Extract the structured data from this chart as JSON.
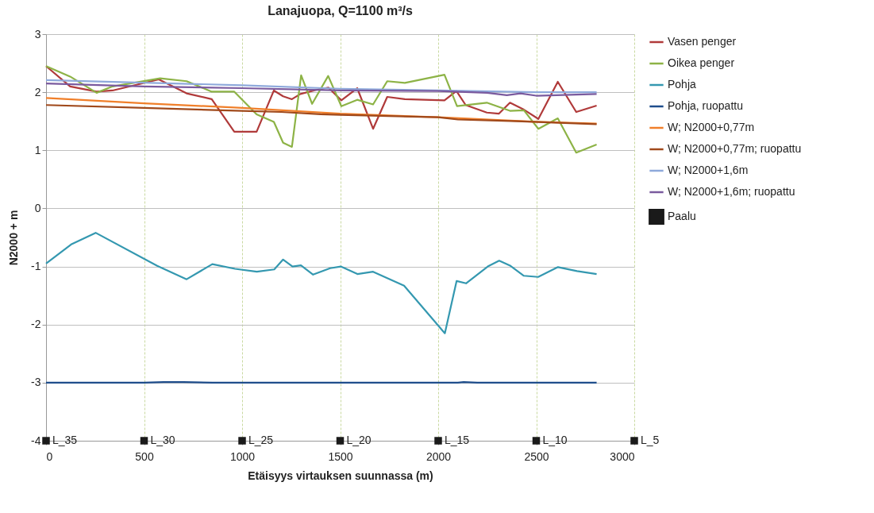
{
  "chart_data": {
    "type": "line",
    "title": "Lanajuopa, Q=1100 m³/s",
    "xlabel": "Etäisyys virtauksen suunnassa (m)",
    "ylabel": "N2000 + m",
    "xlim": [
      0,
      3000
    ],
    "xticks": [
      0,
      500,
      1000,
      1500,
      2000,
      2500,
      3000
    ],
    "ylim": [
      -4,
      3
    ],
    "yticks": [
      -4,
      -3,
      -2,
      -1,
      0,
      1,
      2,
      3
    ],
    "grid": true,
    "legend": "right",
    "line_style": "solid",
    "annotations": [
      {
        "text": "L_35",
        "x": 0,
        "y": -4
      },
      {
        "text": "L_30",
        "x": 500,
        "y": -4
      },
      {
        "text": "L_25",
        "x": 1000,
        "y": -4
      },
      {
        "text": "L_20",
        "x": 1500,
        "y": -4
      },
      {
        "text": "L_15",
        "x": 2000,
        "y": -4
      },
      {
        "text": "L_10",
        "x": 2500,
        "y": -4
      },
      {
        "text": "L_5",
        "x": 3000,
        "y": -4
      }
    ],
    "series": [
      {
        "name": "Vasen penger",
        "color": "#b03a3a",
        "x": [
          0,
          123,
          258,
          339,
          575,
          717,
          845,
          960,
          1074,
          1162,
          1209,
          1254,
          1297,
          1378,
          1440,
          1506,
          1587,
          1668,
          1740,
          1830,
          2032,
          2093,
          2140,
          2248,
          2309,
          2366,
          2437,
          2511,
          2610,
          2704,
          2808
        ],
        "values": [
          2.45,
          2.1,
          2.01,
          2.03,
          2.22,
          1.98,
          1.88,
          1.32,
          1.32,
          2.03,
          1.93,
          1.88,
          1.97,
          2.04,
          2.08,
          1.86,
          2.07,
          1.37,
          1.92,
          1.88,
          1.86,
          2.02,
          1.78,
          1.65,
          1.63,
          1.82,
          1.7,
          1.54,
          2.18,
          1.66,
          1.77
        ]
      },
      {
        "name": "Oikea penger",
        "color": "#8db346",
        "x": [
          0,
          123,
          258,
          339,
          582,
          717,
          845,
          960,
          1074,
          1162,
          1209,
          1254,
          1301,
          1357,
          1439,
          1506,
          1587,
          1668,
          1740,
          1830,
          2032,
          2096,
          2248,
          2366,
          2437,
          2511,
          2610,
          2704,
          2808
        ],
        "values": [
          2.45,
          2.27,
          1.99,
          2.1,
          2.24,
          2.19,
          2.01,
          2.01,
          1.62,
          1.49,
          1.13,
          1.06,
          2.29,
          1.8,
          2.28,
          1.76,
          1.87,
          1.79,
          2.19,
          2.16,
          2.3,
          1.76,
          1.82,
          1.68,
          1.69,
          1.37,
          1.55,
          0.96,
          1.1
        ]
      },
      {
        "name": "Pohja",
        "color": "#3498b0",
        "x": [
          0,
          128,
          253,
          567,
          717,
          848,
          964,
          1075,
          1164,
          1209,
          1257,
          1300,
          1362,
          1449,
          1503,
          1588,
          1668,
          1826,
          2034,
          2094,
          2142,
          2253,
          2311,
          2369,
          2437,
          2510,
          2611,
          2708,
          2808
        ],
        "values": [
          -0.95,
          -0.62,
          -0.42,
          -0.99,
          -1.22,
          -0.96,
          -1.04,
          -1.09,
          -1.05,
          -0.88,
          -1.0,
          -0.98,
          -1.14,
          -1.03,
          -1.0,
          -1.13,
          -1.09,
          -1.33,
          -2.15,
          -1.25,
          -1.29,
          -1.0,
          -0.9,
          -0.99,
          -1.16,
          -1.18,
          -1.01,
          -1.08,
          -1.13
        ]
      },
      {
        "name": "Pohja, ruopattu",
        "color": "#1f4e8c",
        "x": [
          0,
          500,
          600,
          700,
          850,
          1500,
          2100,
          2130,
          2200,
          2500,
          2808
        ],
        "values": [
          -3,
          -3,
          -2.99,
          -2.99,
          -3,
          -3,
          -3,
          -2.99,
          -3,
          -3,
          -3
        ]
      },
      {
        "name": "W; N2000+0,77m",
        "color": "#f07f2a",
        "x": [
          0,
          500,
          1000,
          1500,
          2000,
          2500,
          2808
        ],
        "values": [
          1.9,
          1.81,
          1.73,
          1.63,
          1.57,
          1.49,
          1.46
        ]
      },
      {
        "name": "W; N2000+0,77m; ruopattu",
        "color": "#a0491b",
        "x": [
          0,
          500,
          1000,
          1200,
          1400,
          1500,
          2000,
          2100,
          2400,
          2808
        ],
        "values": [
          1.78,
          1.73,
          1.68,
          1.66,
          1.62,
          1.61,
          1.57,
          1.53,
          1.5,
          1.45
        ]
      },
      {
        "name": "W; N2000+1,6m",
        "color": "#8ea9db",
        "x": [
          0,
          1000,
          1500,
          2000,
          2500,
          2808
        ],
        "values": [
          2.21,
          2.12,
          2.06,
          2.03,
          2.0,
          2.0
        ]
      },
      {
        "name": "W; N2000+1,6m; ruopattu",
        "color": "#7a5a9e",
        "x": [
          0,
          500,
          1000,
          1500,
          2000,
          2250,
          2350,
          2420,
          2500,
          2808
        ],
        "values": [
          2.15,
          2.1,
          2.07,
          2.03,
          2.02,
          1.99,
          1.95,
          1.98,
          1.94,
          1.97
        ]
      },
      {
        "name": "Paalu",
        "type": "scatter",
        "marker": "square",
        "color": "#1a1a1a",
        "x": [
          0,
          500,
          1000,
          1500,
          2000,
          2500,
          3000
        ],
        "values": [
          -4,
          -4,
          -4,
          -4,
          -4,
          -4,
          -4
        ]
      }
    ]
  }
}
